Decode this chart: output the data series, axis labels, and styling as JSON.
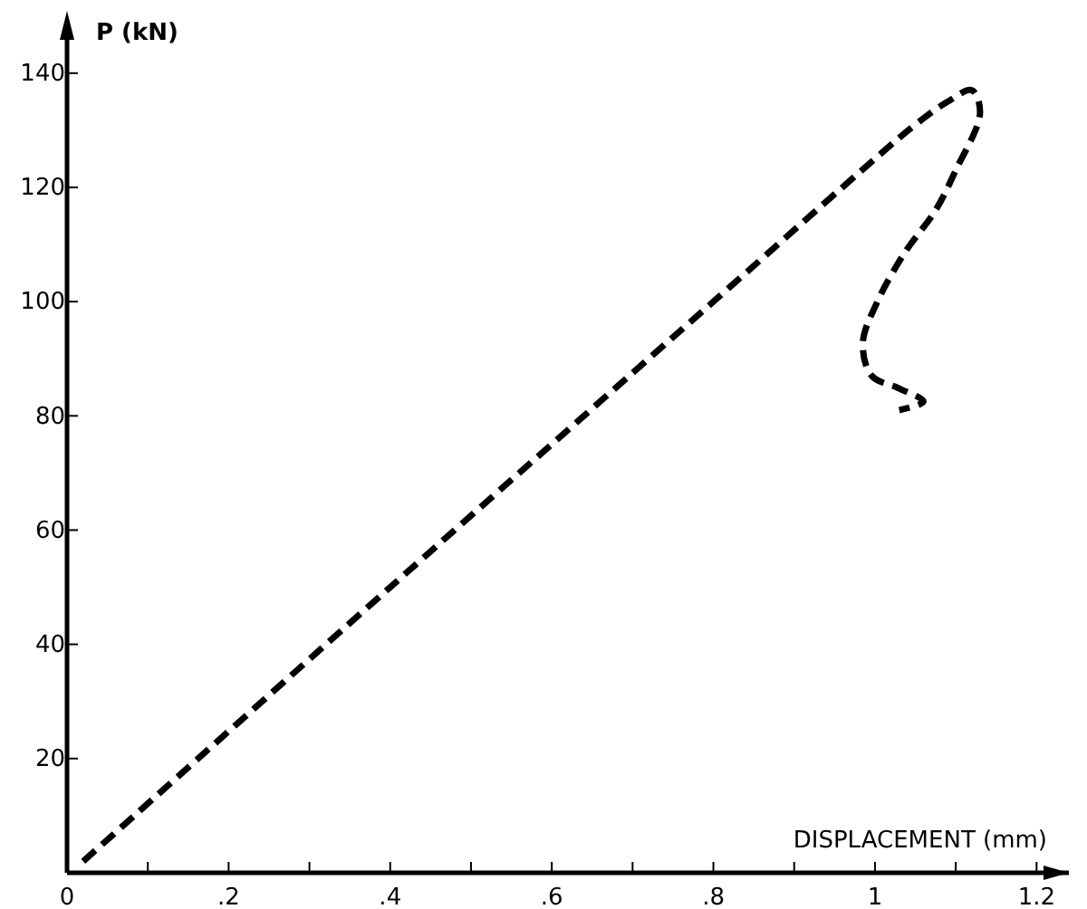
{
  "chart_data": {
    "type": "line",
    "xlabel": "DISPLACEMENT (mm)",
    "ylabel": "P (kN)",
    "xlim": [
      0,
      1.24
    ],
    "ylim": [
      0,
      149
    ],
    "xticks": [
      {
        "value": 0,
        "label": "0"
      },
      {
        "value": 0.1,
        "label": null
      },
      {
        "value": 0.2,
        "label": ".2"
      },
      {
        "value": 0.3,
        "label": null
      },
      {
        "value": 0.4,
        "label": ".4"
      },
      {
        "value": 0.5,
        "label": null
      },
      {
        "value": 0.6,
        "label": ".6"
      },
      {
        "value": 0.7,
        "label": null
      },
      {
        "value": 0.8,
        "label": ".8"
      },
      {
        "value": 0.9,
        "label": null
      },
      {
        "value": 1,
        "label": "1"
      },
      {
        "value": 1.1,
        "label": null
      },
      {
        "value": 1.2,
        "label": "1.2"
      }
    ],
    "yticks": [
      20,
      40,
      60,
      80,
      100,
      120,
      140
    ],
    "grid": false,
    "marker": "none",
    "line_style": "dashed",
    "series": [
      {
        "color": "#000000",
        "x": [
          0.02,
          0.4,
          0.8,
          1.0,
          1.05,
          1.09,
          1.12,
          1.13,
          1.1,
          1.075,
          1.037,
          1.003,
          0.985,
          0.996,
          1.03,
          1.06,
          1.03
        ],
        "values": [
          2,
          50,
          100,
          125,
          131,
          135,
          137,
          133,
          123,
          116,
          108.6,
          100,
          92.7,
          87,
          84.8,
          82.5,
          81
        ]
      }
    ]
  }
}
